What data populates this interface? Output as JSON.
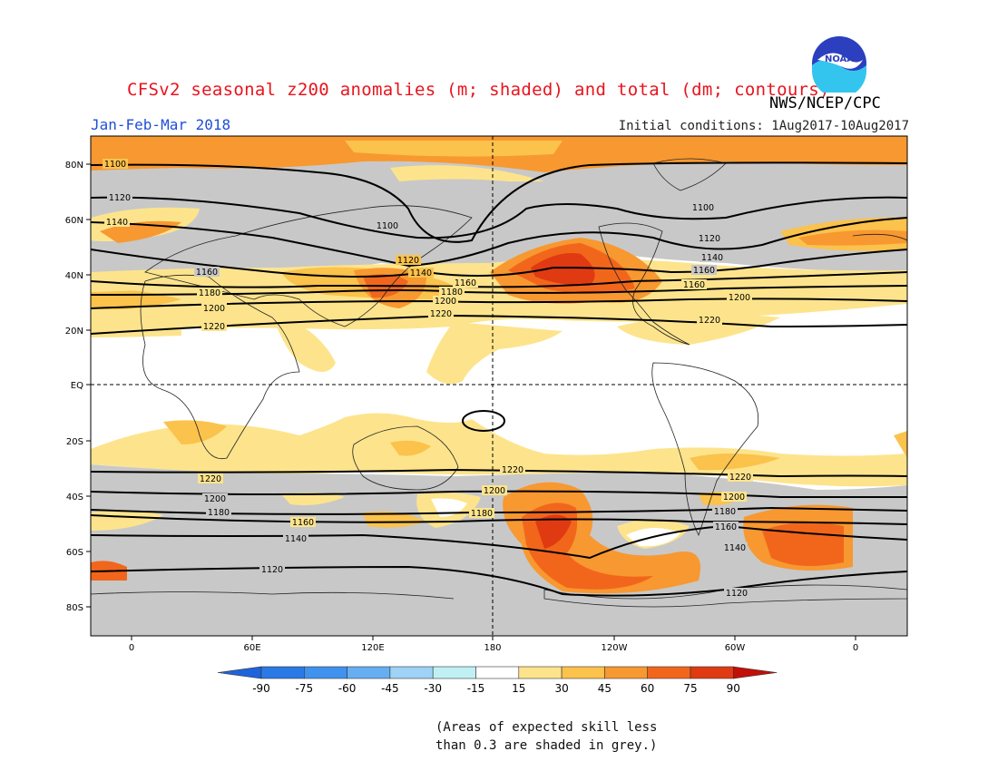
{
  "header": {
    "title": "CFSv2 seasonal z200 anomalies (m; shaded) and total (dm; contours)",
    "org": "NWS/NCEP/CPC",
    "season": "Jan-Feb-Mar 2018",
    "init_label": "Initial conditions:",
    "init_value": "1Aug2017-10Aug2017",
    "logo_text": "NOAA"
  },
  "axes": {
    "lat_labels": [
      "80N",
      "60N",
      "40N",
      "20N",
      "EQ",
      "20S",
      "40S",
      "60S",
      "80S"
    ],
    "lon_labels": [
      "0",
      "60E",
      "120E",
      "180",
      "120W",
      "60W",
      "0"
    ]
  },
  "contours": [
    {
      "value": "1100",
      "label_lats": [
        80
      ]
    },
    {
      "value": "1120"
    },
    {
      "value": "1140"
    },
    {
      "value": "1160"
    },
    {
      "value": "1180"
    },
    {
      "value": "1200"
    },
    {
      "value": "1220"
    }
  ],
  "colorbar": {
    "ticks": [
      "-90",
      "-75",
      "-60",
      "-45",
      "-30",
      "-15",
      "15",
      "30",
      "45",
      "60",
      "75",
      "90"
    ],
    "colors": [
      "#1e64dc",
      "#2a7ae6",
      "#3f92ee",
      "#66aef2",
      "#9ed2f6",
      "#c0f0f4",
      "#ffffff",
      "#fde48c",
      "#fbc24c",
      "#f89830",
      "#f2661c",
      "#e03a12",
      "#c01008"
    ]
  },
  "note": {
    "line1": "(Areas of expected skill less",
    "line2": "than 0.3 are shaded in grey.)"
  },
  "colors": {
    "grey_mask": "#c8c8c8",
    "band_15_30": "#fde48c",
    "band_30_45": "#fbc24c",
    "band_45_60": "#f89830",
    "band_60_75": "#f2661c",
    "band_75_90": "#e03a12"
  }
}
